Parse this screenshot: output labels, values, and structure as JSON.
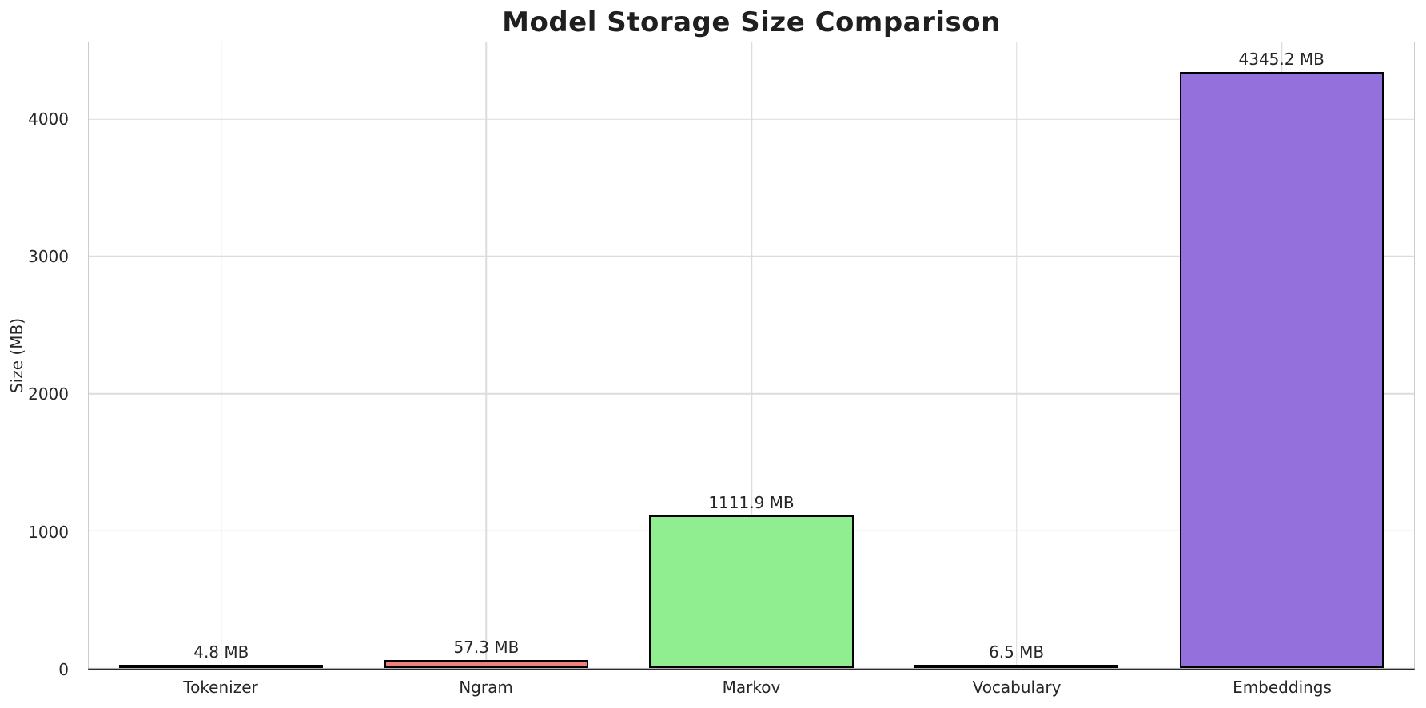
{
  "chart_data": {
    "type": "bar",
    "title": "Model Storage Size Comparison",
    "xlabel": "",
    "ylabel": "Size (MB)",
    "categories": [
      "Tokenizer",
      "Ngram",
      "Markov",
      "Vocabulary",
      "Embeddings"
    ],
    "values": [
      4.8,
      57.3,
      1111.9,
      6.5,
      4345.2
    ],
    "value_labels": [
      "4.8 MB",
      "57.3 MB",
      "1111.9 MB",
      "6.5 MB",
      "4345.2 MB"
    ],
    "bar_colors": [
      "#87ceeb",
      "#f08080",
      "#90ee90",
      "#ffd700",
      "#9370db"
    ],
    "bar_edge_color": "#000000",
    "ylim": [
      0,
      4560
    ],
    "yticks": [
      0,
      1000,
      2000,
      3000,
      4000
    ],
    "grid": true,
    "legend_position": "none"
  }
}
